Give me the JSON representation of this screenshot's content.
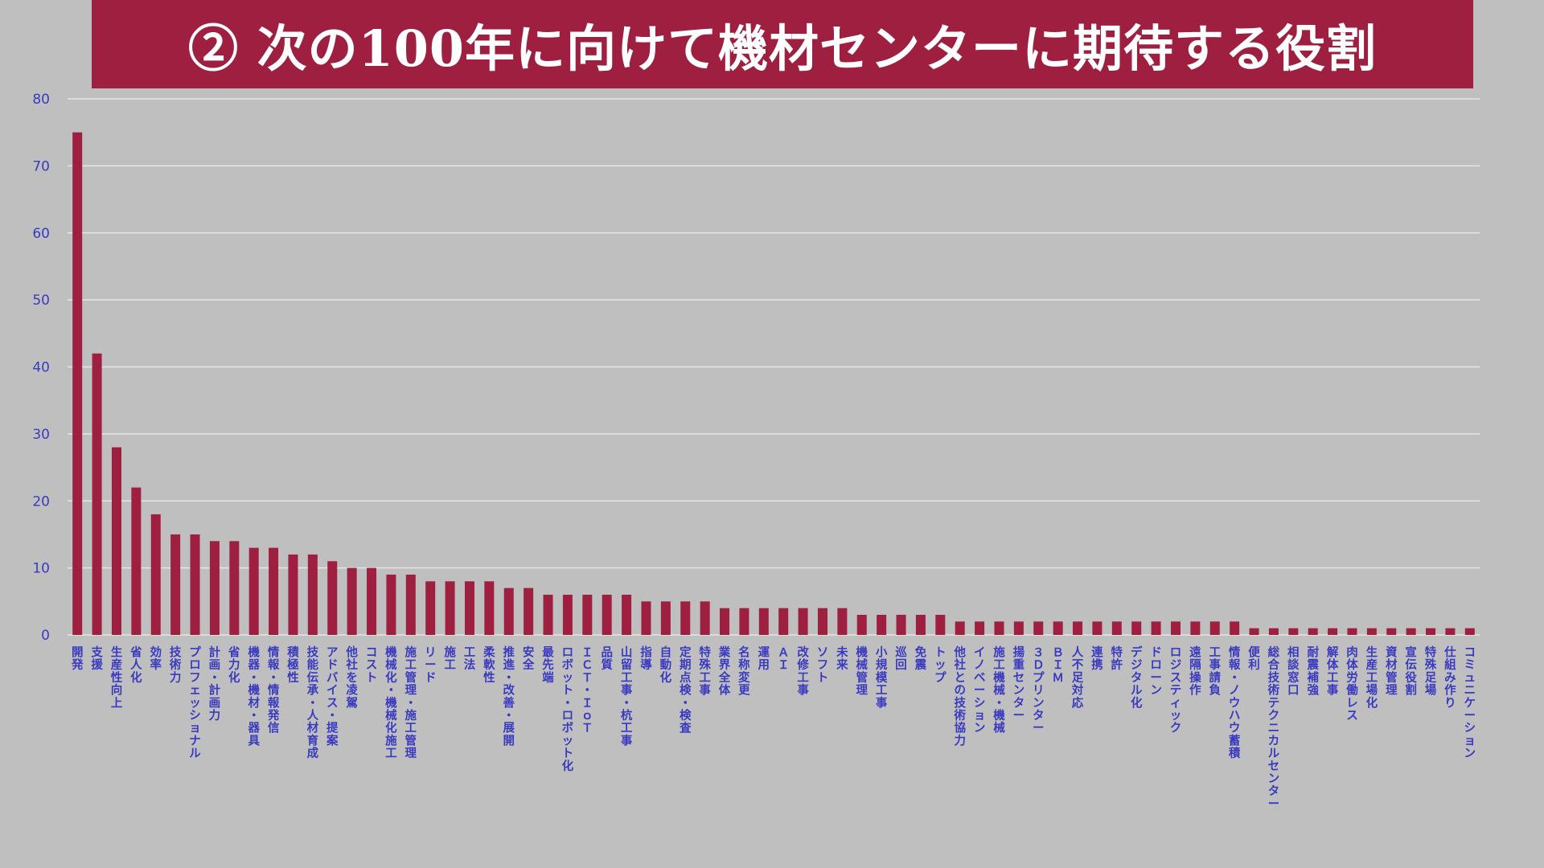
{
  "title": "② 次の100年に向けて機材センターに期待する役割",
  "colors": {
    "bar": "#9e1f3f",
    "title_bg": "#9e1f3f",
    "grid": "#e6e6e6",
    "label": "#3a3ac0",
    "background": "#bfbfbf"
  },
  "chart_data": {
    "type": "bar",
    "ylim": [
      0,
      80
    ],
    "yticks": [
      0,
      10,
      20,
      30,
      40,
      50,
      60,
      70,
      80
    ],
    "grid": true,
    "categories": [
      "開発",
      "支援",
      "生産性向上",
      "省人化",
      "効率",
      "技術力",
      "プロフェッショナル",
      "計画・計画力",
      "省力化",
      "機器・機材・器具",
      "情報・情報発信",
      "積極性",
      "技能伝承・人材育成",
      "アドバイス・提案",
      "他社を凌駕",
      "コスト",
      "機械化・機械化施工",
      "施工管理・施工管理",
      "リード",
      "施工",
      "工法",
      "柔軟性",
      "推進・改善・展開",
      "安全",
      "最先端",
      "ロボット・ロボット化",
      "ＩＣＴ・ＩｏＴ",
      "品質",
      "山留工事・杭工事",
      "指導",
      "自動化",
      "定期点検・検査",
      "特殊工事",
      "業界全体",
      "名称変更",
      "運用",
      "ＡＩ",
      "改修工事",
      "ソフト",
      "未来",
      "機械管理",
      "小規模工事",
      "巡回",
      "免震",
      "トップ",
      "他社との技術協力",
      "イノベーション",
      "施工機械・機械",
      "揚重センター",
      "３Ｄプリンター",
      "ＢＩＭ",
      "人不足対応",
      "連携",
      "特許",
      "デジタル化",
      "ドローン",
      "ロジスティック",
      "遠隔操作",
      "工事請負",
      "情報・ノウハウ蓄積",
      "便利",
      "総合技術テクニカルセンター",
      "相談窓口",
      "耐震補強",
      "解体工事",
      "肉体労働レス",
      "生産工場化",
      "資材管理",
      "宣伝役割",
      "特殊足場",
      "仕組み作り",
      "コミュニケーション"
    ],
    "values": [
      75,
      42,
      28,
      22,
      18,
      15,
      15,
      14,
      14,
      13,
      13,
      12,
      12,
      11,
      10,
      10,
      9,
      9,
      8,
      8,
      8,
      8,
      7,
      7,
      6,
      6,
      6,
      6,
      6,
      5,
      5,
      5,
      5,
      4,
      4,
      4,
      4,
      4,
      4,
      4,
      3,
      3,
      3,
      3,
      3,
      2,
      2,
      2,
      2,
      2,
      2,
      2,
      2,
      2,
      2,
      2,
      2,
      2,
      2,
      2,
      1,
      1,
      1,
      1,
      1,
      1,
      1,
      1,
      1,
      1,
      1,
      1
    ]
  }
}
